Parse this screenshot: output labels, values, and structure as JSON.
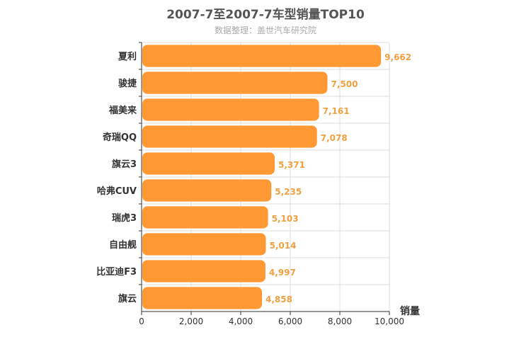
{
  "chart_data": {
    "type": "bar",
    "orientation": "horizontal",
    "title": "2007-7至2007-7车型销量TOP10",
    "subtitle": "数据整理：盖世汽车研究院",
    "categories": [
      "夏利",
      "骏捷",
      "福美来",
      "奇瑞QQ",
      "旗云3",
      "哈弗CUV",
      "瑞虎3",
      "自由舰",
      "比亚迪F3",
      "旗云"
    ],
    "values": [
      9662,
      7500,
      7161,
      7078,
      5371,
      5235,
      5103,
      5014,
      4997,
      4858
    ],
    "value_labels": [
      "9,662",
      "7,500",
      "7,161",
      "7,078",
      "5,371",
      "5,235",
      "5,103",
      "5,014",
      "4,997",
      "4,858"
    ],
    "xlabel": "销量",
    "ylabel": "",
    "xlim": [
      0,
      10000
    ],
    "xticks": [
      0,
      2000,
      4000,
      6000,
      8000,
      10000
    ],
    "xtick_labels": [
      "0",
      "2,000",
      "4,000",
      "6,000",
      "8,000",
      "10,000"
    ],
    "grid": true,
    "bar_color": "#ff9933",
    "label_color": "#f0a040"
  }
}
